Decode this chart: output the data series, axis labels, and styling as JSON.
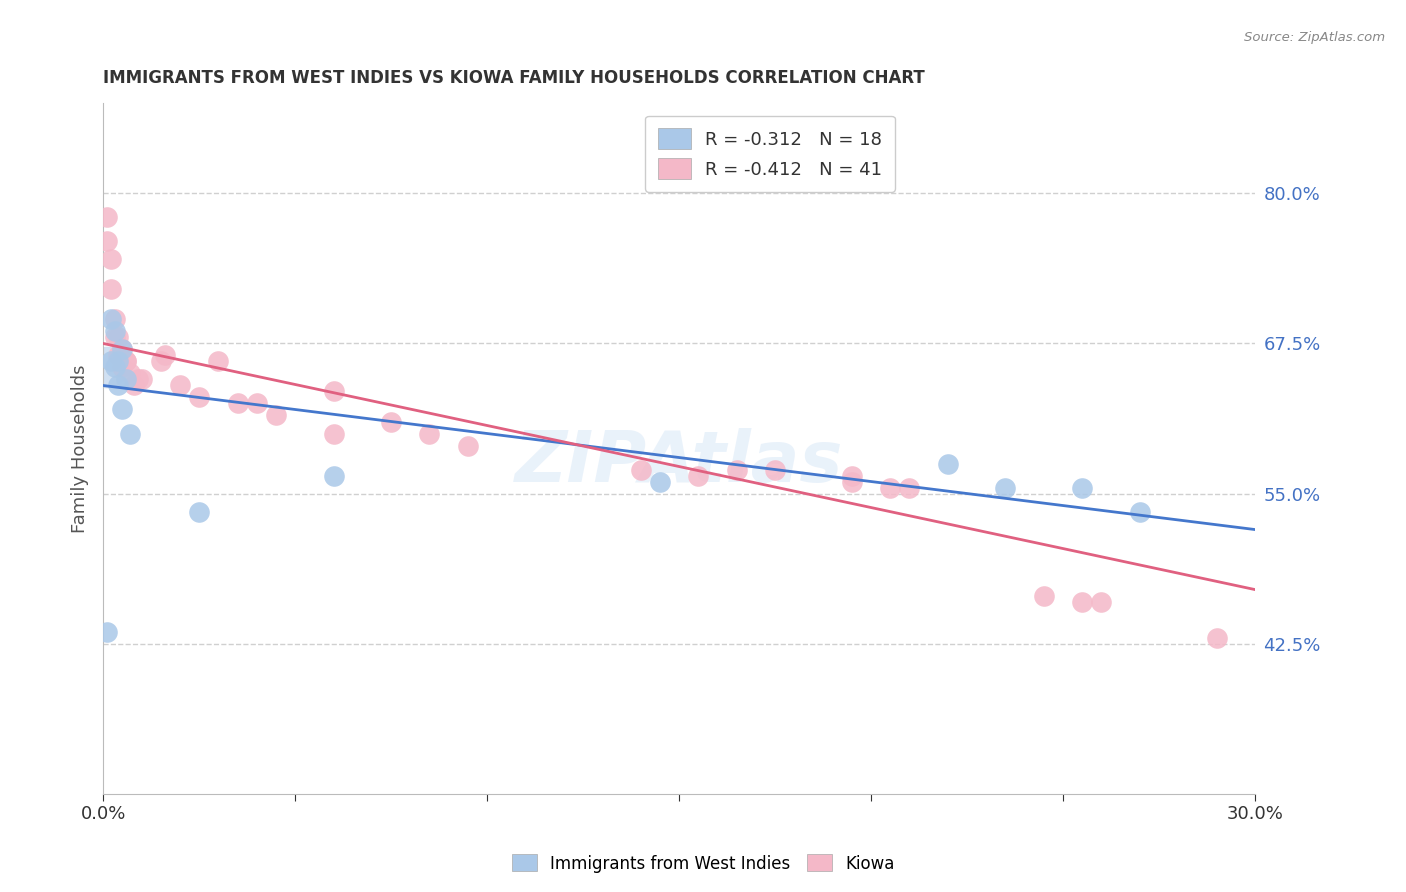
{
  "title": "IMMIGRANTS FROM WEST INDIES VS KIOWA FAMILY HOUSEHOLDS CORRELATION CHART",
  "source": "Source: ZipAtlas.com",
  "ylabel": "Family Households",
  "ylabel_right_ticks": [
    "80.0%",
    "67.5%",
    "55.0%",
    "42.5%"
  ],
  "ylabel_right_vals": [
    0.8,
    0.675,
    0.55,
    0.425
  ],
  "xmin": 0.0,
  "xmax": 0.3,
  "ymin": 0.3,
  "ymax": 0.875,
  "legend_blue_r": "-0.312",
  "legend_blue_n": "18",
  "legend_pink_r": "-0.412",
  "legend_pink_n": "41",
  "legend_blue_label": "Immigrants from West Indies",
  "legend_pink_label": "Kiowa",
  "blue_scatter_x": [
    0.001,
    0.002,
    0.002,
    0.003,
    0.003,
    0.004,
    0.004,
    0.005,
    0.005,
    0.006,
    0.007,
    0.025,
    0.06,
    0.145,
    0.22,
    0.235,
    0.255,
    0.27
  ],
  "blue_scatter_y": [
    0.435,
    0.695,
    0.66,
    0.685,
    0.655,
    0.66,
    0.64,
    0.67,
    0.62,
    0.645,
    0.6,
    0.535,
    0.565,
    0.56,
    0.575,
    0.555,
    0.555,
    0.535
  ],
  "pink_scatter_x": [
    0.001,
    0.001,
    0.002,
    0.002,
    0.003,
    0.003,
    0.004,
    0.004,
    0.005,
    0.005,
    0.006,
    0.006,
    0.007,
    0.008,
    0.009,
    0.01,
    0.015,
    0.016,
    0.02,
    0.025,
    0.03,
    0.035,
    0.04,
    0.045,
    0.06,
    0.06,
    0.075,
    0.085,
    0.095,
    0.14,
    0.155,
    0.165,
    0.175,
    0.195,
    0.195,
    0.205,
    0.21,
    0.245,
    0.255,
    0.26,
    0.29
  ],
  "pink_scatter_y": [
    0.78,
    0.76,
    0.745,
    0.72,
    0.695,
    0.68,
    0.68,
    0.665,
    0.67,
    0.655,
    0.66,
    0.66,
    0.65,
    0.64,
    0.645,
    0.645,
    0.66,
    0.665,
    0.64,
    0.63,
    0.66,
    0.625,
    0.625,
    0.615,
    0.635,
    0.6,
    0.61,
    0.6,
    0.59,
    0.57,
    0.565,
    0.57,
    0.57,
    0.565,
    0.56,
    0.555,
    0.555,
    0.465,
    0.46,
    0.46,
    0.43
  ],
  "blue_line_x": [
    0.0,
    0.3
  ],
  "blue_line_y": [
    0.64,
    0.52
  ],
  "pink_line_x": [
    0.0,
    0.3
  ],
  "pink_line_y": [
    0.675,
    0.47
  ],
  "blue_color": "#aac8e8",
  "pink_color": "#f4b8c8",
  "blue_line_color": "#4477cc",
  "pink_line_color": "#e06080",
  "grid_color": "#d0d0d0",
  "right_axis_color": "#4472C4",
  "watermark": "ZIPAtlas",
  "background_color": "#ffffff"
}
